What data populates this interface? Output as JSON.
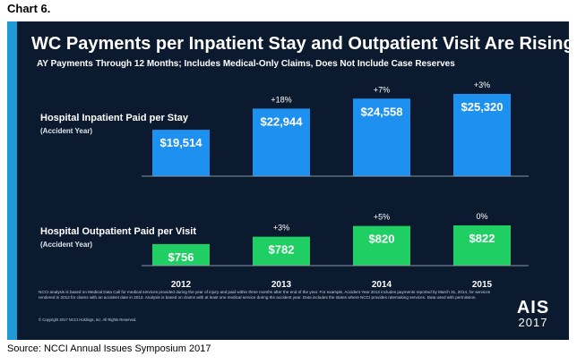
{
  "chart_number": "Chart 6.",
  "slide": {
    "title": "WC Payments per Inpatient Stay and Outpatient Visit Are Rising",
    "subtitle": "AY Payments Through 12 Months; Includes Medical-Only Claims, Does Not Include Case Reserves",
    "footnote": "NCCI analysis is based on Medical Data Call for medical services provided during the year of injury and paid within three months after the end of the year. For example, Accident Year 2013 includes payments reported by March 31, 2014, for services rendered in 2013 for claims with an accident date in 2013. Analysis is based on claims with at least one medical service during the accident year. Data includes the states where NCCI provides ratemaking services. Data used with permission.",
    "copyright": "© Copyright 2017 NCCI Holdings, Inc. All Rights Reserved.",
    "logo": {
      "line1": "AIS",
      "line2": "2017"
    },
    "accent_color": "#1e9bd7",
    "background_color": "#0c1a30"
  },
  "source": "Source: NCCI Annual Issues Symposium 2017",
  "chart_data": [
    {
      "type": "bar",
      "row_label": "Hospital Inpatient Paid per Stay",
      "row_sublabel": "(Accident Year)",
      "categories": [
        "2012",
        "2013",
        "2014",
        "2015"
      ],
      "values": [
        19514,
        22944,
        24558,
        25320
      ],
      "value_labels": [
        "$19,514",
        "$22,944",
        "$24,558",
        "$25,320"
      ],
      "change_labels": [
        "",
        "+18%",
        "+7%",
        "+3%"
      ],
      "color": "#1e90f0"
    },
    {
      "type": "bar",
      "row_label": "Hospital Outpatient Paid per Visit",
      "row_sublabel": "(Accident Year)",
      "categories": [
        "2012",
        "2013",
        "2014",
        "2015"
      ],
      "values": [
        756,
        782,
        820,
        822
      ],
      "value_labels": [
        "$756",
        "$782",
        "$820",
        "$822"
      ],
      "change_labels": [
        "",
        "+3%",
        "+5%",
        "0%"
      ],
      "color": "#1fcf63"
    }
  ]
}
